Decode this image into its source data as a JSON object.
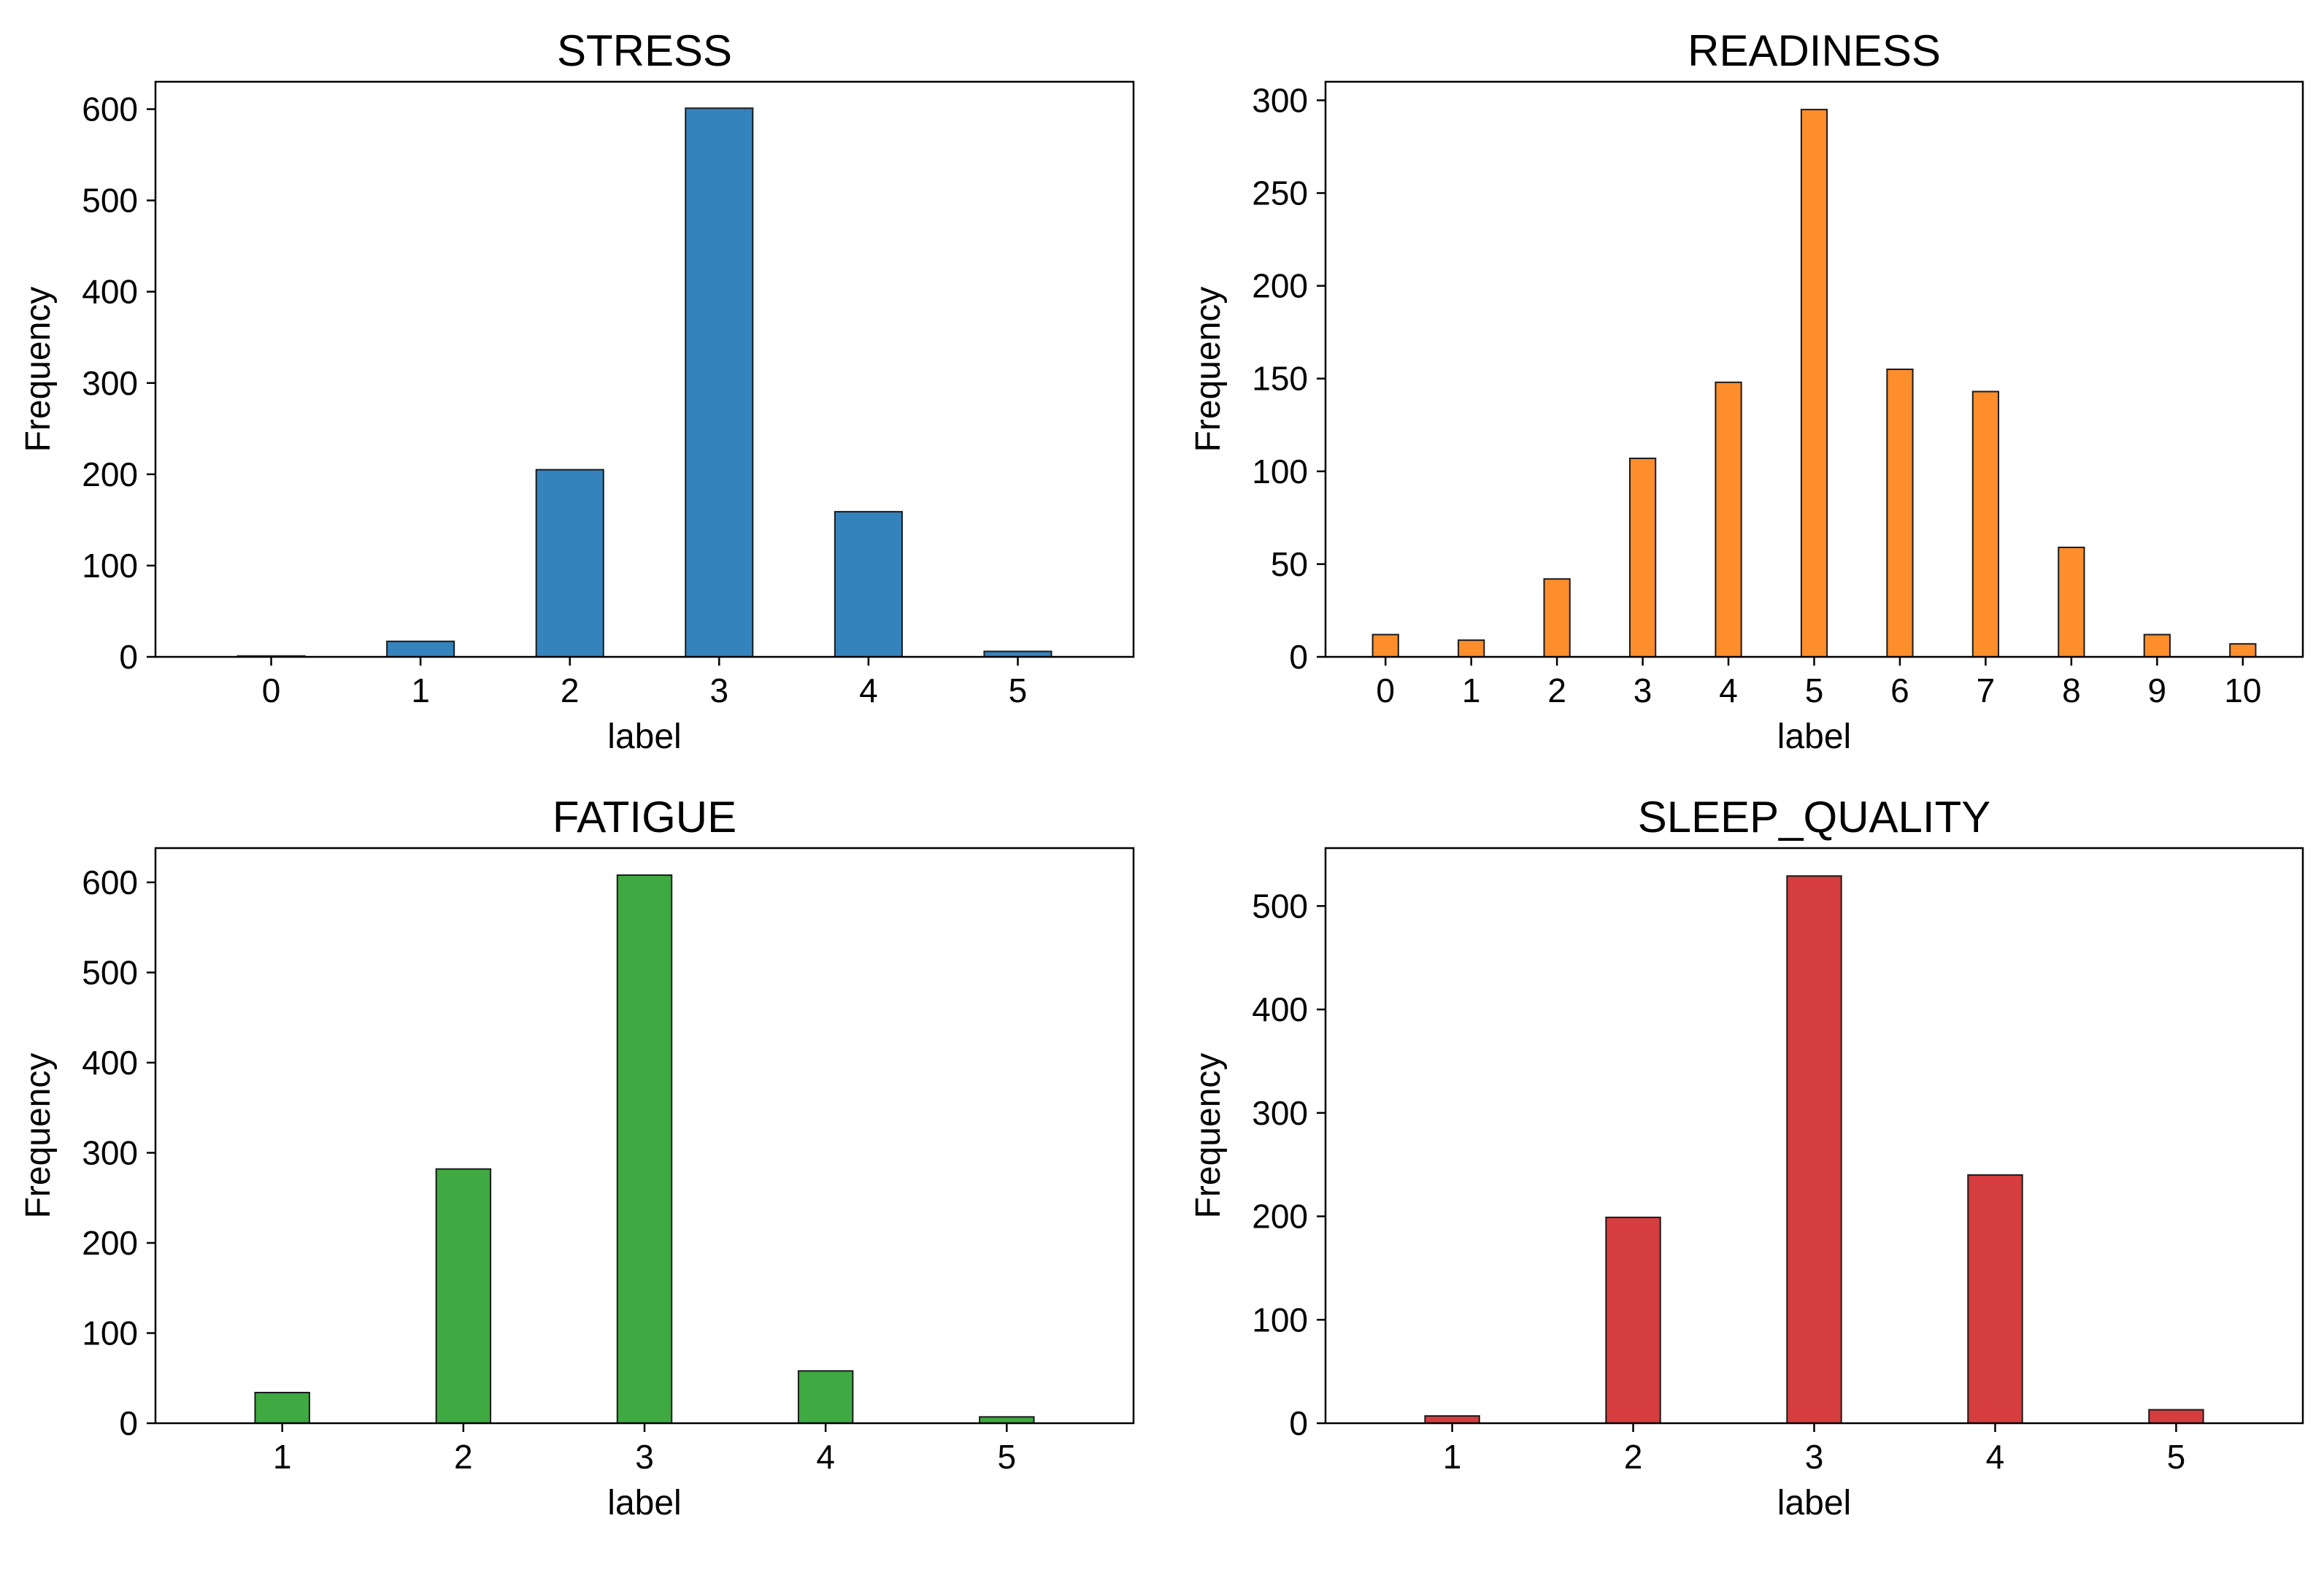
{
  "chart_data": [
    {
      "type": "bar",
      "title": "STRESS",
      "xlabel": "label",
      "ylabel": "Frequency",
      "categories": [
        "0",
        "1",
        "2",
        "3",
        "4",
        "5"
      ],
      "values": [
        1,
        17,
        205,
        601,
        159,
        6
      ],
      "ylim": [
        0,
        630
      ],
      "yticks": [
        0,
        100,
        200,
        300,
        400,
        500,
        600
      ],
      "color": "#3583bd",
      "edge_color": "#1a1a1a",
      "grid": false
    },
    {
      "type": "bar",
      "title": "READINESS",
      "xlabel": "label",
      "ylabel": "Frequency",
      "categories": [
        "0",
        "1",
        "2",
        "3",
        "4",
        "5",
        "6",
        "7",
        "8",
        "9",
        "10"
      ],
      "values": [
        12,
        9,
        42,
        107,
        148,
        295,
        155,
        143,
        59,
        12,
        7
      ],
      "ylim": [
        0,
        310
      ],
      "yticks": [
        0,
        50,
        100,
        150,
        200,
        250,
        300
      ],
      "color": "#fd8e2b",
      "edge_color": "#1a1a1a",
      "grid": false
    },
    {
      "type": "bar",
      "title": "FATIGUE",
      "xlabel": "label",
      "ylabel": "Frequency",
      "categories": [
        "1",
        "2",
        "3",
        "4",
        "5"
      ],
      "values": [
        34,
        282,
        608,
        58,
        7
      ],
      "ylim": [
        0,
        638
      ],
      "yticks": [
        0,
        100,
        200,
        300,
        400,
        500,
        600
      ],
      "color": "#3fa942",
      "edge_color": "#1a1a1a",
      "grid": false
    },
    {
      "type": "bar",
      "title": "SLEEP_QUALITY",
      "xlabel": "label",
      "ylabel": "Frequency",
      "categories": [
        "1",
        "2",
        "3",
        "4",
        "5"
      ],
      "values": [
        7,
        199,
        529,
        240,
        13
      ],
      "ylim": [
        0,
        556
      ],
      "yticks": [
        0,
        100,
        200,
        300,
        400,
        500
      ],
      "color": "#d63d3e",
      "edge_color": "#1a1a1a",
      "grid": false
    }
  ]
}
